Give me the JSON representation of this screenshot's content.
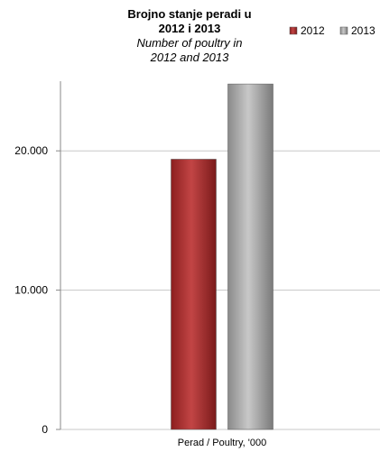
{
  "chart_data": {
    "type": "bar",
    "title_lines": [
      "Brojno stanje peradi u",
      "2012 i 2013"
    ],
    "subtitle_lines": [
      "Number of poultry in",
      "2012 and 2013"
    ],
    "categories": [
      "Perad / Poultry, '000"
    ],
    "series": [
      {
        "name": "2012",
        "values": [
          19400
        ],
        "color": "#a83232"
      },
      {
        "name": "2013",
        "values": [
          24800
        ],
        "color": "#a6a6a6"
      }
    ],
    "ylim": [
      0,
      25000
    ],
    "yticks": [
      {
        "value": 0,
        "label": "0"
      },
      {
        "value": 10000,
        "label": "10.000"
      },
      {
        "value": 20000,
        "label": "20.000"
      }
    ],
    "grid": true,
    "legend_position": "top-right"
  }
}
